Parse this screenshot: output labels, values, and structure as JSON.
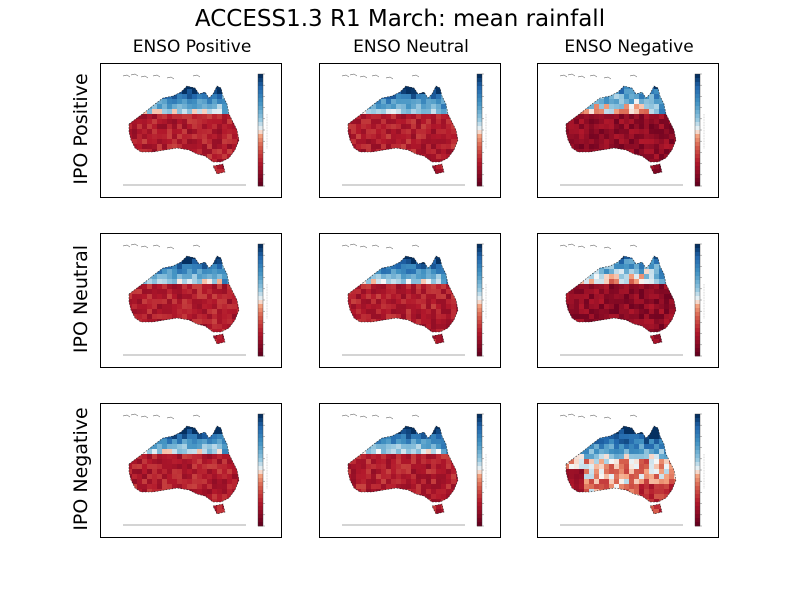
{
  "title": "ACCESS1.3 R1 March: mean rainfall",
  "columns": [
    {
      "id": "enso-positive",
      "label": "ENSO Positive"
    },
    {
      "id": "enso-neutral",
      "label": "ENSO Neutral"
    },
    {
      "id": "enso-negative",
      "label": "ENSO Negative"
    }
  ],
  "rows": [
    {
      "id": "ipo-positive",
      "label": "IPO Positive"
    },
    {
      "id": "ipo-neutral",
      "label": "IPO Neutral"
    },
    {
      "id": "ipo-negative",
      "label": "IPO Negative"
    }
  ],
  "colormap": {
    "dry": "#67001f",
    "mid": "#f7f7f7",
    "wet": "#053061"
  },
  "panels": [
    {
      "row": 0,
      "col": 0,
      "pattern": "dry"
    },
    {
      "row": 0,
      "col": 1,
      "pattern": "dry"
    },
    {
      "row": 0,
      "col": 2,
      "pattern": "very-dry"
    },
    {
      "row": 1,
      "col": 0,
      "pattern": "dry"
    },
    {
      "row": 1,
      "col": 1,
      "pattern": "dry"
    },
    {
      "row": 1,
      "col": 2,
      "pattern": "very-dry"
    },
    {
      "row": 2,
      "col": 0,
      "pattern": "dry"
    },
    {
      "row": 2,
      "col": 1,
      "pattern": "dry"
    },
    {
      "row": 2,
      "col": 2,
      "pattern": "wet-north"
    }
  ]
}
